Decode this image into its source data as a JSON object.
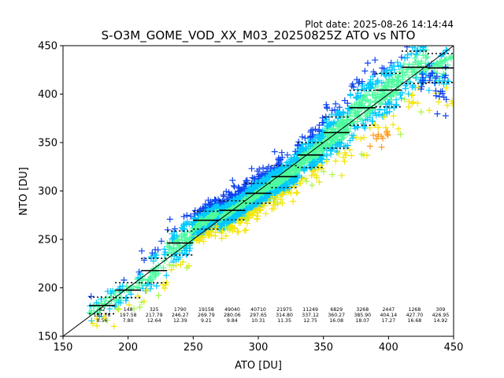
{
  "plot_date": "Plot date: 2025-08-26 14:14:44",
  "chart_data": {
    "type": "scatter",
    "title": "S-O3M_GOME_VOD_XX_M03_20250825Z ATO vs NTO",
    "xlabel": "ATO [DU]",
    "ylabel": "NTO [DU]",
    "xlim": [
      150,
      450
    ],
    "ylim": [
      150,
      450
    ],
    "xticks": [
      "150",
      "200",
      "250",
      "300",
      "350",
      "400",
      "450"
    ],
    "yticks": [
      "150",
      "200",
      "250",
      "300",
      "350",
      "400",
      "450"
    ],
    "grid": false,
    "identity_line": true,
    "colors": {
      "density_low": "#00c8ff",
      "density_mid": "#4dfb9e",
      "yellow": "#f2e600",
      "orange": "#ff9a1a",
      "blue": "#1144ee",
      "lime": "#a8f542",
      "median": "#000000"
    },
    "bins": [
      {
        "x": [
          170,
          190
        ],
        "count": "82",
        "median": "181.78",
        "std": "8.56"
      },
      {
        "x": [
          190,
          210
        ],
        "count": "148",
        "median": "197.58",
        "std": "7.80"
      },
      {
        "x": [
          210,
          230
        ],
        "count": "325",
        "median": "217.79",
        "std": "12.64"
      },
      {
        "x": [
          230,
          250
        ],
        "count": "1790",
        "median": "246.27",
        "std": "12.39"
      },
      {
        "x": [
          250,
          270
        ],
        "count": "19158",
        "median": "269.79",
        "std": "9.21"
      },
      {
        "x": [
          270,
          290
        ],
        "count": "49040",
        "median": "280.06",
        "std": "9.84"
      },
      {
        "x": [
          290,
          310
        ],
        "count": "40710",
        "median": "297.65",
        "std": "10.31"
      },
      {
        "x": [
          310,
          330
        ],
        "count": "21975",
        "median": "314.80",
        "std": "11.35"
      },
      {
        "x": [
          330,
          350
        ],
        "count": "11249",
        "median": "337.12",
        "std": "12.75"
      },
      {
        "x": [
          350,
          370
        ],
        "count": "6829",
        "median": "360.27",
        "std": "16.08"
      },
      {
        "x": [
          370,
          390
        ],
        "count": "3268",
        "median": "385.90",
        "std": "18.07"
      },
      {
        "x": [
          390,
          410
        ],
        "count": "2447",
        "median": "404.14",
        "std": "17.27"
      },
      {
        "x": [
          410,
          430
        ],
        "count": "1268",
        "median": "427.70",
        "std": "16.68"
      },
      {
        "x": [
          430,
          450
        ],
        "count": "309",
        "median": "426.95",
        "std": "14.92"
      }
    ]
  }
}
